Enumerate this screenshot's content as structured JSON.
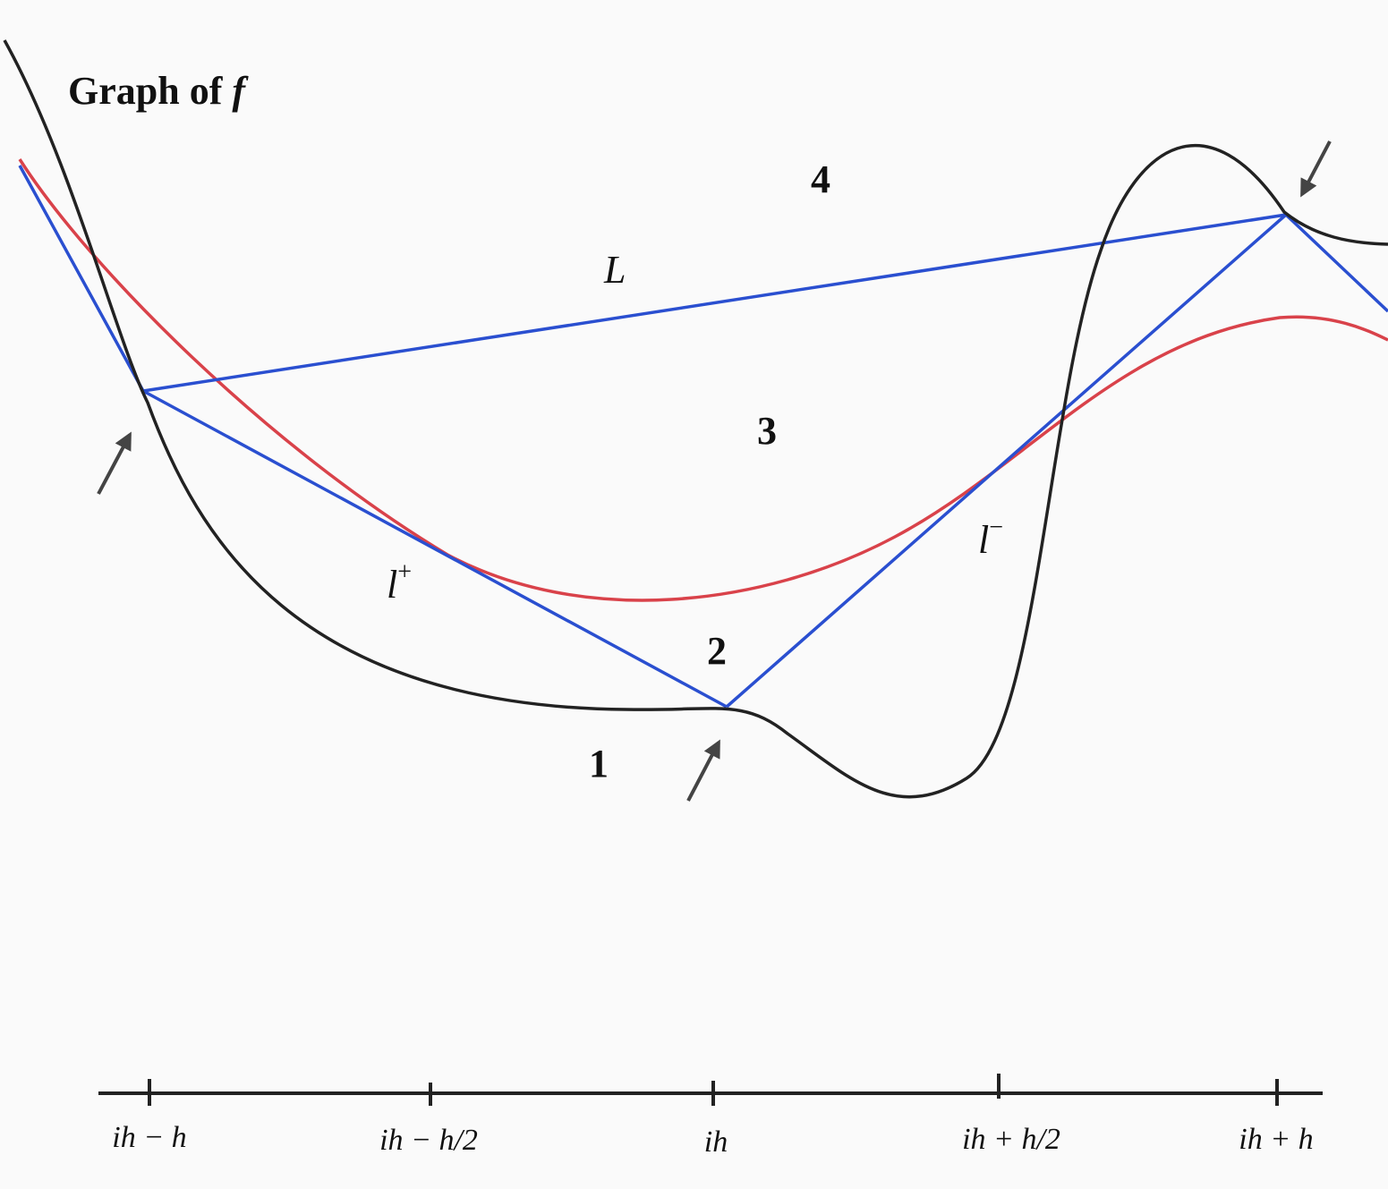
{
  "title": {
    "text": "Graph of",
    "symbol": "f"
  },
  "labels": {
    "L": "L",
    "l_plus": {
      "base": "l",
      "sup": "+"
    },
    "l_minus": {
      "base": "l",
      "sup": "−"
    }
  },
  "regions": [
    "1",
    "2",
    "3",
    "4"
  ],
  "axis_ticks": [
    "ih − h",
    "ih − h/2",
    "ih",
    "ih + h/2",
    "ih + h"
  ]
}
